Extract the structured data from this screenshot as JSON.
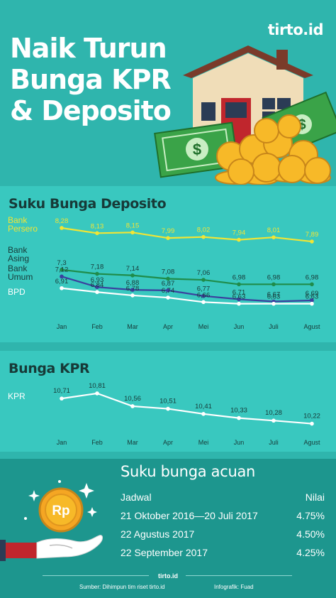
{
  "brand": {
    "logo": "tirto.id"
  },
  "header": {
    "title_lines": [
      "Naik Turun",
      "Bunga KPR",
      "& Deposito"
    ]
  },
  "colors": {
    "persero": "#f2e534",
    "asing": "#1f8c4a",
    "umum": "#3b3f9e",
    "bpd": "#ffffff",
    "kpr": "#ffffff",
    "bg": "#2fb5ad",
    "panel": "#39c8bf",
    "bottom": "#1d968e"
  },
  "chart_data": [
    {
      "type": "line",
      "title": "Suku Bunga Deposito",
      "categories": [
        "Jan",
        "Feb",
        "Mar",
        "Apr",
        "Mei",
        "Jun",
        "Juli",
        "Agust"
      ],
      "series": [
        {
          "name": "Bank Persero",
          "color": "#f2e534",
          "values": [
            8.28,
            8.13,
            8.15,
            7.99,
            8.02,
            7.94,
            8.01,
            7.89
          ],
          "labels": [
            "8,28",
            "8,13",
            "8,15",
            "7,99",
            "8,02",
            "7,94",
            "8,01",
            "7,89"
          ]
        },
        {
          "name": "Bank Asing",
          "color": "#1f8c4a",
          "values": [
            7.3,
            7.18,
            7.14,
            7.08,
            7.06,
            6.98,
            6.98,
            6.98
          ],
          "labels": [
            "7,3",
            "7,18",
            "7,14",
            "7,08",
            "7,06",
            "6,98",
            "6,98",
            "6,98"
          ]
        },
        {
          "name": "Bank Umum",
          "color": "#3b3f9e",
          "values": [
            7.12,
            6.93,
            6.88,
            6.87,
            6.77,
            6.71,
            6.67,
            6.69
          ],
          "labels": [
            "7,12",
            "6,93",
            "6,88",
            "6,87",
            "6,77",
            "6,71",
            "6,67",
            "6,69"
          ]
        },
        {
          "name": "BPD",
          "color": "#ffffff",
          "values": [
            6.91,
            6.84,
            6.78,
            6.74,
            6.66,
            6.63,
            6.63,
            6.63
          ],
          "labels": [
            "6,91",
            "6,84",
            "6,78",
            "6,74",
            "6,66",
            "6,63",
            "6,63",
            "6,63"
          ]
        }
      ]
    },
    {
      "type": "line",
      "title": "Bunga KPR",
      "categories": [
        "Jan",
        "Feb",
        "Mar",
        "Apr",
        "Mei",
        "Jun",
        "Juli",
        "Agust"
      ],
      "series": [
        {
          "name": "KPR",
          "color": "#ffffff",
          "values": [
            10.71,
            10.81,
            10.56,
            10.51,
            10.41,
            10.33,
            10.28,
            10.22
          ],
          "labels": [
            "10,71",
            "10,81",
            "10,56",
            "10,51",
            "10,41",
            "10,33",
            "10,28",
            "10,22"
          ]
        }
      ]
    }
  ],
  "acuan": {
    "title": "Suku bunga acuan",
    "header": {
      "jadwal": "Jadwal",
      "nilai": "Nilai"
    },
    "rows": [
      {
        "jadwal": "21 Oktober 2016—20 Juli 2017",
        "nilai": "4.75%"
      },
      {
        "jadwal": "22 Agustus 2017",
        "nilai": "4.50%"
      },
      {
        "jadwal": "22 September 2017",
        "nilai": "4.25%"
      }
    ]
  },
  "footer": {
    "logo": "tirto.id",
    "source": "Sumber: Dihimpun tim riset tirto.id",
    "credit": "Infografik: Fuad"
  },
  "icons": {
    "coin": "Rp"
  }
}
